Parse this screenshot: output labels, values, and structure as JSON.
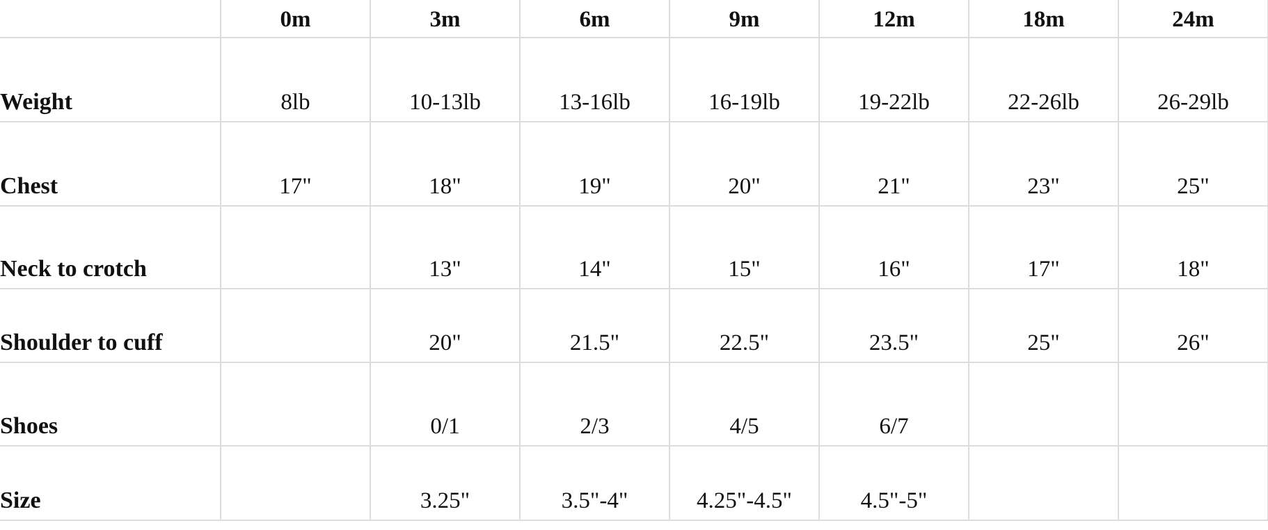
{
  "columns": [
    "",
    "0m",
    "3m",
    "6m",
    "9m",
    "12m",
    "18m",
    "24m"
  ],
  "rows": [
    {
      "label": "Weight",
      "values": [
        "8lb",
        "10-13lb",
        "13-16lb",
        "16-19lb",
        "19-22lb",
        "22-26lb",
        "26-29lb"
      ]
    },
    {
      "label": "Chest",
      "values": [
        "17\"",
        "18\"",
        "19\"",
        "20\"",
        "21\"",
        "23\"",
        "25\""
      ]
    },
    {
      "label": "Neck to crotch",
      "values": [
        "",
        "13\"",
        "14\"",
        "15\"",
        "16\"",
        "17\"",
        "18\""
      ]
    },
    {
      "label": "Shoulder to cuff",
      "values": [
        "",
        "20\"",
        "21.5\"",
        "22.5\"",
        "23.5\"",
        "25\"",
        "26\""
      ]
    },
    {
      "label": "Shoes",
      "values": [
        "",
        "0/1",
        "2/3",
        "4/5",
        "6/7",
        "",
        ""
      ]
    },
    {
      "label": "Size",
      "values": [
        "",
        "3.25\"",
        "3.5\"-4\"",
        "4.25\"-4.5\"",
        "4.5\"-5\"",
        "",
        ""
      ]
    }
  ]
}
